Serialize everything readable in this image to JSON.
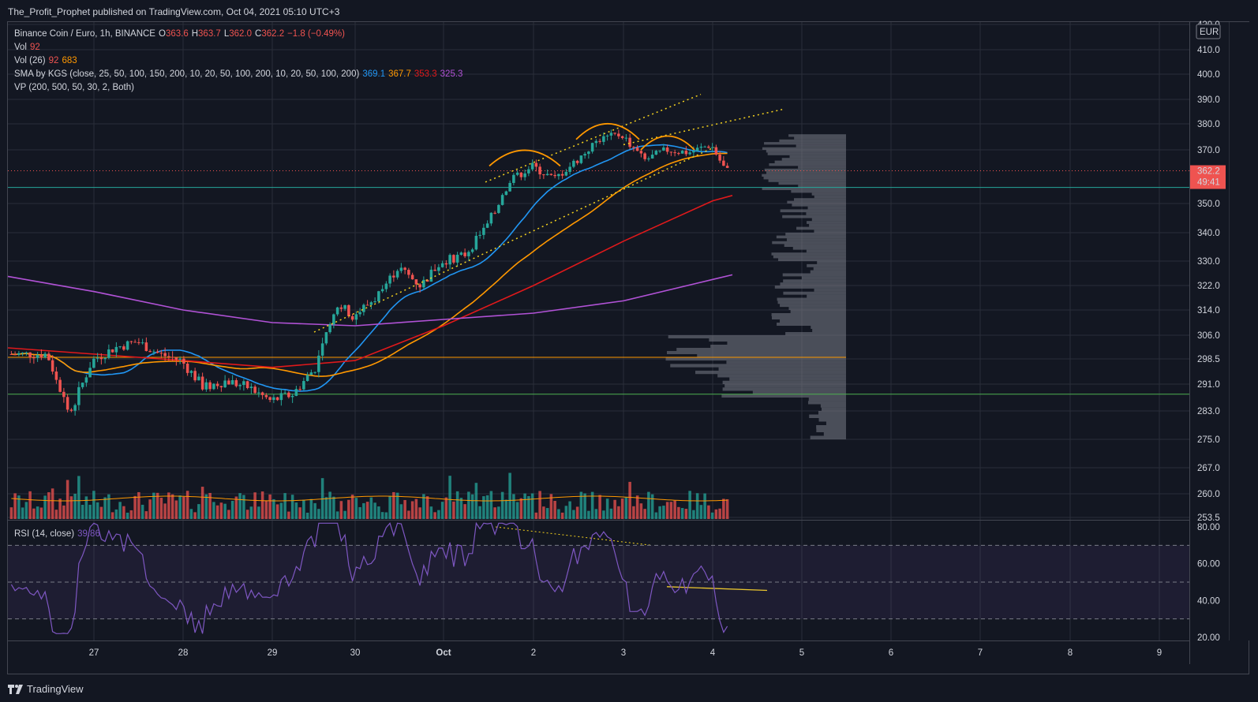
{
  "header": {
    "publish_text": "The_Profit_Prophet published on TradingView.com, Oct 04, 2021 05:10 UTC+3"
  },
  "legend": {
    "symbol": "Binance Coin / Euro, 1h, BINANCE",
    "ohlc": {
      "o_label": "O",
      "o": "363.6",
      "h_label": "H",
      "h": "363.7",
      "l_label": "L",
      "l": "362.0",
      "c_label": "C",
      "c": "362.2",
      "chg": "−1.8 (−0.49%)"
    },
    "vol_label": "Vol",
    "vol_value": "92",
    "vol26_label": "Vol (26)",
    "vol26_v1": "92",
    "vol26_v2": "683",
    "sma_label": "SMA by KGS (close, 25, 50, 100, 150, 200, 10, 20, 50, 100, 200, 10, 20, 50, 100, 200)",
    "sma_values": [
      "369.1",
      "367.7",
      "353.3",
      "325.3"
    ],
    "vp_label": "VP (200, 500, 50, 30, 2, Both)",
    "rsi_label": "RSI (14, close)",
    "rsi_value": "39.86"
  },
  "price_axis": {
    "currency": "EUR",
    "current_price": "362.2",
    "countdown": "49:41"
  },
  "footer": {
    "brand": "TradingView"
  },
  "colors": {
    "bg": "#131722",
    "up": "#26a69a",
    "down": "#ef5350",
    "sma1": "#2196f3",
    "sma2": "#ff9800",
    "sma3": "#e0191b",
    "sma4": "#b152d6",
    "rsi": "#7e57c2",
    "annot": "#f5d21e"
  },
  "chart_data": [
    {
      "type": "line",
      "title": "Binance Coin / Euro, 1h, BINANCE",
      "x_ticks": [
        "27",
        "28",
        "29",
        "30",
        "Oct",
        "2",
        "3",
        "4",
        "5",
        "6",
        "7",
        "8",
        "9"
      ],
      "y_ticks": [
        "420.0",
        "410.0",
        "400.0",
        "390.0",
        "380.0",
        "370.0",
        "362.2",
        "350.0",
        "340.0",
        "330.0",
        "322.0",
        "314.0",
        "306.0",
        "298.5",
        "291.0",
        "283.0",
        "275.0",
        "267.0",
        "260.0",
        "253.5"
      ],
      "price_path_approx": [
        {
          "x": "26 12:00",
          "y": 300
        },
        {
          "x": "26 18:00",
          "y": 282
        },
        {
          "x": "27 00:00",
          "y": 298
        },
        {
          "x": "27 06:00",
          "y": 302
        },
        {
          "x": "27 12:00",
          "y": 304
        },
        {
          "x": "27 18:00",
          "y": 300
        },
        {
          "x": "28 00:00",
          "y": 298
        },
        {
          "x": "28 06:00",
          "y": 290
        },
        {
          "x": "28 12:00",
          "y": 292
        },
        {
          "x": "28 18:00",
          "y": 290
        },
        {
          "x": "29 00:00",
          "y": 286
        },
        {
          "x": "29 06:00",
          "y": 288
        },
        {
          "x": "29 12:00",
          "y": 296
        },
        {
          "x": "29 18:00",
          "y": 316
        },
        {
          "x": "30 00:00",
          "y": 312
        },
        {
          "x": "30 06:00",
          "y": 318
        },
        {
          "x": "30 12:00",
          "y": 328
        },
        {
          "x": "30 18:00",
          "y": 322
        },
        {
          "x": "Oct 1 00:00",
          "y": 330
        },
        {
          "x": "Oct 1 06:00",
          "y": 332
        },
        {
          "x": "Oct 1 12:00",
          "y": 342
        },
        {
          "x": "Oct 1 18:00",
          "y": 358
        },
        {
          "x": "2 00:00",
          "y": 364
        },
        {
          "x": "2 06:00",
          "y": 359
        },
        {
          "x": "2 12:00",
          "y": 366
        },
        {
          "x": "2 18:00",
          "y": 374
        },
        {
          "x": "3 00:00",
          "y": 376
        },
        {
          "x": "3 06:00",
          "y": 366
        },
        {
          "x": "3 12:00",
          "y": 370
        },
        {
          "x": "3 18:00",
          "y": 369
        },
        {
          "x": "4 00:00",
          "y": 372
        },
        {
          "x": "4 04:00",
          "y": 362.2
        }
      ],
      "horizontal_levels": [
        {
          "name": "resistance-support",
          "y": 356,
          "color": "#26a69a"
        },
        {
          "name": "poc",
          "y": 299,
          "color": "#ff9800"
        },
        {
          "name": "support",
          "y": 288,
          "color": "#4caf50"
        }
      ]
    },
    {
      "type": "line",
      "title": "RSI (14, close)",
      "y_ticks": [
        "80.00",
        "60.00",
        "40.00",
        "20.00"
      ],
      "ylim": [
        20,
        80
      ],
      "bands": [
        30,
        50,
        70
      ],
      "last_value": 39.86
    }
  ]
}
